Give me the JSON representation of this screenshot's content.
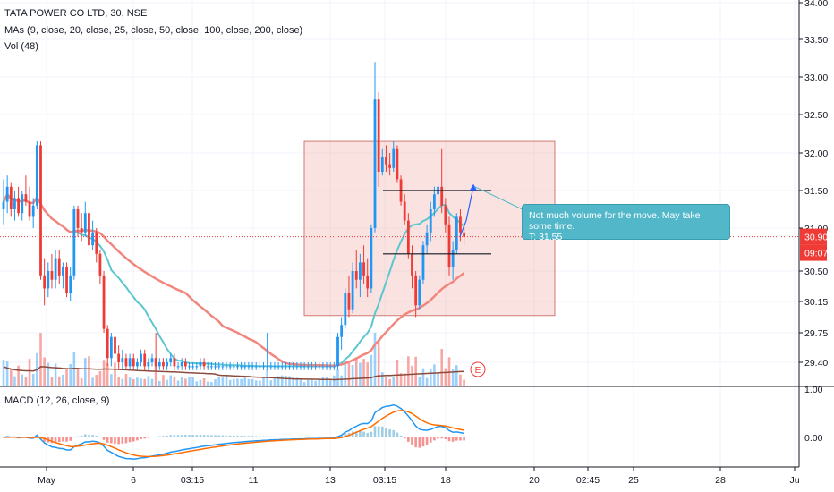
{
  "legend": {
    "symbol": "TATA POWER CO LTD, 30, NSE",
    "mas": "MAs (9, close, 20, close, 25, close, 50, close, 100, close, 200, close)",
    "vol": "Vol (48)",
    "macd": "MACD (12, 26, close, 9)"
  },
  "callout": {
    "line1": "Not much volume for the move. May take some time.",
    "line2": "T: 31.55"
  },
  "earnings_marker": "E",
  "price_badge": "30.90",
  "time_badge": "09:07",
  "colors": {
    "up": "#2196f3",
    "down": "#ef3b36",
    "ma_fast": "#5cc6d0",
    "ma_slow": "#f1867e",
    "ma_long": "#8b4a3a",
    "macd_line": "#2196f3",
    "signal_line": "#ff6d00",
    "price_line": "#ef3b36",
    "callout_bg": "#51b7c9"
  },
  "chart_data": {
    "type": "candlestick",
    "title": "TATA POWER CO LTD, 30, NSE",
    "price_axis": {
      "ticks": [
        "34.00",
        "33.50",
        "33.00",
        "32.50",
        "32.00",
        "31.50",
        "31.00",
        "30.50",
        "30.15",
        "29.75",
        "29.40"
      ],
      "ylim": [
        29.2,
        34.0
      ]
    },
    "volume_axis_ticks": [
      "1.00"
    ],
    "macd_axis_ticks": [
      "0.00"
    ],
    "x_ticks": [
      "May",
      "6",
      "03:15",
      "11",
      "13",
      "03:15",
      "18",
      "20",
      "02:45",
      "25",
      "28",
      "Ju"
    ],
    "candles": [
      {
        "o": 31.25,
        "h": 31.65,
        "l": 31.05,
        "c": 31.35
      },
      {
        "o": 31.35,
        "h": 31.7,
        "l": 31.2,
        "c": 31.55
      },
      {
        "o": 31.55,
        "h": 31.6,
        "l": 31.15,
        "c": 31.25
      },
      {
        "o": 31.25,
        "h": 31.5,
        "l": 31.1,
        "c": 31.4
      },
      {
        "o": 31.4,
        "h": 31.55,
        "l": 31.15,
        "c": 31.2
      },
      {
        "o": 31.2,
        "h": 31.5,
        "l": 31.1,
        "c": 31.45
      },
      {
        "o": 31.45,
        "h": 31.7,
        "l": 31.3,
        "c": 31.35
      },
      {
        "o": 31.35,
        "h": 31.55,
        "l": 31.1,
        "c": 31.15
      },
      {
        "o": 31.15,
        "h": 31.4,
        "l": 31.0,
        "c": 31.3
      },
      {
        "o": 31.3,
        "h": 32.15,
        "l": 31.25,
        "c": 32.1
      },
      {
        "o": 32.1,
        "h": 32.15,
        "l": 30.4,
        "c": 30.45
      },
      {
        "o": 30.45,
        "h": 30.65,
        "l": 30.1,
        "c": 30.3
      },
      {
        "o": 30.3,
        "h": 30.6,
        "l": 30.2,
        "c": 30.5
      },
      {
        "o": 30.5,
        "h": 30.7,
        "l": 30.3,
        "c": 30.4
      },
      {
        "o": 30.4,
        "h": 30.75,
        "l": 30.3,
        "c": 30.65
      },
      {
        "o": 30.65,
        "h": 30.75,
        "l": 30.35,
        "c": 30.45
      },
      {
        "o": 30.45,
        "h": 30.6,
        "l": 30.3,
        "c": 30.55
      },
      {
        "o": 30.55,
        "h": 30.6,
        "l": 30.2,
        "c": 30.25
      },
      {
        "o": 30.25,
        "h": 30.55,
        "l": 30.15,
        "c": 30.45
      },
      {
        "o": 30.45,
        "h": 31.3,
        "l": 30.4,
        "c": 31.25
      },
      {
        "o": 31.25,
        "h": 31.3,
        "l": 30.9,
        "c": 31.0
      },
      {
        "o": 31.0,
        "h": 31.2,
        "l": 30.85,
        "c": 30.95
      },
      {
        "o": 30.95,
        "h": 31.35,
        "l": 30.9,
        "c": 31.2
      },
      {
        "o": 31.2,
        "h": 31.25,
        "l": 30.75,
        "c": 30.8
      },
      {
        "o": 30.8,
        "h": 31.1,
        "l": 30.75,
        "c": 30.95
      },
      {
        "o": 30.95,
        "h": 31.0,
        "l": 30.6,
        "c": 30.7
      },
      {
        "o": 30.7,
        "h": 30.75,
        "l": 30.35,
        "c": 30.45
      },
      {
        "o": 30.45,
        "h": 30.5,
        "l": 29.75,
        "c": 29.8
      },
      {
        "o": 29.8,
        "h": 29.85,
        "l": 29.35,
        "c": 29.45
      },
      {
        "o": 29.45,
        "h": 29.75,
        "l": 29.35,
        "c": 29.7
      },
      {
        "o": 29.7,
        "h": 29.8,
        "l": 29.4,
        "c": 29.5
      },
      {
        "o": 29.5,
        "h": 29.6,
        "l": 29.3,
        "c": 29.4
      },
      {
        "o": 29.4,
        "h": 29.55,
        "l": 29.3,
        "c": 29.45
      },
      {
        "o": 29.45,
        "h": 29.5,
        "l": 29.3,
        "c": 29.35
      },
      {
        "o": 29.35,
        "h": 29.5,
        "l": 29.3,
        "c": 29.45
      },
      {
        "o": 29.45,
        "h": 29.5,
        "l": 29.3,
        "c": 29.35
      },
      {
        "o": 29.35,
        "h": 29.45,
        "l": 29.3,
        "c": 29.4
      },
      {
        "o": 29.4,
        "h": 29.55,
        "l": 29.35,
        "c": 29.5
      },
      {
        "o": 29.5,
        "h": 29.55,
        "l": 29.3,
        "c": 29.35
      },
      {
        "o": 29.35,
        "h": 29.45,
        "l": 29.3,
        "c": 29.4
      },
      {
        "o": 29.4,
        "h": 29.5,
        "l": 29.35,
        "c": 29.45
      },
      {
        "o": 29.45,
        "h": 29.75,
        "l": 29.3,
        "c": 29.35
      },
      {
        "o": 29.35,
        "h": 29.45,
        "l": 29.3,
        "c": 29.4
      },
      {
        "o": 29.4,
        "h": 29.45,
        "l": 29.3,
        "c": 29.35
      },
      {
        "o": 29.35,
        "h": 29.45,
        "l": 29.3,
        "c": 29.4
      },
      {
        "o": 29.4,
        "h": 29.5,
        "l": 29.35,
        "c": 29.45
      },
      {
        "o": 29.45,
        "h": 29.5,
        "l": 29.3,
        "c": 29.35
      },
      {
        "o": 29.35,
        "h": 29.4,
        "l": 29.3,
        "c": 29.35
      },
      {
        "o": 29.35,
        "h": 29.45,
        "l": 29.3,
        "c": 29.4
      },
      {
        "o": 29.4,
        "h": 29.45,
        "l": 29.3,
        "c": 29.35
      },
      {
        "o": 29.35,
        "h": 29.4,
        "l": 29.3,
        "c": 29.35
      },
      {
        "o": 29.35,
        "h": 29.4,
        "l": 29.3,
        "c": 29.35
      },
      {
        "o": 29.35,
        "h": 29.4,
        "l": 29.3,
        "c": 29.35
      },
      {
        "o": 29.35,
        "h": 29.45,
        "l": 29.3,
        "c": 29.4
      },
      {
        "o": 29.4,
        "h": 29.45,
        "l": 29.3,
        "c": 29.35
      },
      {
        "o": 29.35,
        "h": 29.4,
        "l": 29.3,
        "c": 29.35
      },
      {
        "o": 29.35,
        "h": 29.4,
        "l": 29.3,
        "c": 29.35
      },
      {
        "o": 29.35,
        "h": 29.4,
        "l": 29.3,
        "c": 29.35
      },
      {
        "o": 29.35,
        "h": 29.4,
        "l": 29.3,
        "c": 29.35
      },
      {
        "o": 29.35,
        "h": 29.4,
        "l": 29.3,
        "c": 29.35
      },
      {
        "o": 29.35,
        "h": 29.4,
        "l": 29.3,
        "c": 29.35
      },
      {
        "o": 29.35,
        "h": 29.4,
        "l": 29.3,
        "c": 29.35
      },
      {
        "o": 29.35,
        "h": 29.4,
        "l": 29.3,
        "c": 29.35
      },
      {
        "o": 29.35,
        "h": 29.4,
        "l": 29.3,
        "c": 29.35
      },
      {
        "o": 29.35,
        "h": 29.4,
        "l": 29.3,
        "c": 29.35
      },
      {
        "o": 29.35,
        "h": 29.4,
        "l": 29.3,
        "c": 29.35
      },
      {
        "o": 29.35,
        "h": 29.4,
        "l": 29.3,
        "c": 29.35
      },
      {
        "o": 29.35,
        "h": 29.4,
        "l": 29.3,
        "c": 29.35
      },
      {
        "o": 29.35,
        "h": 29.4,
        "l": 29.3,
        "c": 29.35
      },
      {
        "o": 29.35,
        "h": 29.4,
        "l": 29.3,
        "c": 29.35
      },
      {
        "o": 29.35,
        "h": 29.4,
        "l": 29.3,
        "c": 29.35
      },
      {
        "o": 29.35,
        "h": 29.75,
        "l": 29.3,
        "c": 29.35
      },
      {
        "o": 29.35,
        "h": 29.4,
        "l": 29.3,
        "c": 29.35
      },
      {
        "o": 29.35,
        "h": 29.4,
        "l": 29.3,
        "c": 29.35
      },
      {
        "o": 29.35,
        "h": 29.4,
        "l": 29.3,
        "c": 29.35
      },
      {
        "o": 29.35,
        "h": 29.4,
        "l": 29.3,
        "c": 29.35
      },
      {
        "o": 29.35,
        "h": 29.4,
        "l": 29.3,
        "c": 29.35
      },
      {
        "o": 29.35,
        "h": 29.4,
        "l": 29.3,
        "c": 29.35
      },
      {
        "o": 29.35,
        "h": 29.4,
        "l": 29.3,
        "c": 29.35
      },
      {
        "o": 29.35,
        "h": 29.4,
        "l": 29.3,
        "c": 29.35
      },
      {
        "o": 29.35,
        "h": 29.4,
        "l": 29.3,
        "c": 29.35
      },
      {
        "o": 29.35,
        "h": 29.4,
        "l": 29.3,
        "c": 29.35
      },
      {
        "o": 29.35,
        "h": 29.4,
        "l": 29.3,
        "c": 29.35
      },
      {
        "o": 29.35,
        "h": 29.4,
        "l": 29.3,
        "c": 29.35
      },
      {
        "o": 29.35,
        "h": 29.4,
        "l": 29.3,
        "c": 29.35
      },
      {
        "o": 29.35,
        "h": 29.4,
        "l": 29.3,
        "c": 29.35
      },
      {
        "o": 29.35,
        "h": 29.4,
        "l": 29.3,
        "c": 29.35
      },
      {
        "o": 29.35,
        "h": 29.4,
        "l": 29.3,
        "c": 29.35
      },
      {
        "o": 29.35,
        "h": 29.4,
        "l": 29.3,
        "c": 29.35
      },
      {
        "o": 29.35,
        "h": 29.4,
        "l": 29.3,
        "c": 29.35
      },
      {
        "o": 29.35,
        "h": 29.75,
        "l": 29.3,
        "c": 29.7
      },
      {
        "o": 29.7,
        "h": 29.95,
        "l": 29.55,
        "c": 29.85
      },
      {
        "o": 29.85,
        "h": 30.3,
        "l": 29.8,
        "c": 30.25
      },
      {
        "o": 30.25,
        "h": 30.45,
        "l": 29.95,
        "c": 30.05
      },
      {
        "o": 30.05,
        "h": 30.6,
        "l": 30.0,
        "c": 30.5
      },
      {
        "o": 30.5,
        "h": 30.75,
        "l": 30.3,
        "c": 30.4
      },
      {
        "o": 30.4,
        "h": 30.7,
        "l": 30.2,
        "c": 30.6
      },
      {
        "o": 30.6,
        "h": 30.8,
        "l": 30.35,
        "c": 30.45
      },
      {
        "o": 30.45,
        "h": 30.65,
        "l": 30.2,
        "c": 30.3
      },
      {
        "o": 30.3,
        "h": 31.05,
        "l": 30.25,
        "c": 31.0
      },
      {
        "o": 31.0,
        "h": 33.2,
        "l": 30.95,
        "c": 32.7
      },
      {
        "o": 32.7,
        "h": 32.8,
        "l": 31.55,
        "c": 31.75
      },
      {
        "o": 31.75,
        "h": 32.05,
        "l": 31.7,
        "c": 31.95
      },
      {
        "o": 31.95,
        "h": 32.1,
        "l": 31.75,
        "c": 31.85
      },
      {
        "o": 31.85,
        "h": 32.0,
        "l": 31.7,
        "c": 31.8
      },
      {
        "o": 31.8,
        "h": 32.15,
        "l": 31.75,
        "c": 32.05
      },
      {
        "o": 32.05,
        "h": 32.1,
        "l": 31.6,
        "c": 31.65
      },
      {
        "o": 31.65,
        "h": 31.7,
        "l": 31.3,
        "c": 31.35
      },
      {
        "o": 31.35,
        "h": 31.45,
        "l": 31.05,
        "c": 31.1
      },
      {
        "o": 31.1,
        "h": 31.2,
        "l": 30.65,
        "c": 30.7
      },
      {
        "o": 30.7,
        "h": 30.8,
        "l": 30.3,
        "c": 30.45
      },
      {
        "o": 30.45,
        "h": 30.5,
        "l": 29.95,
        "c": 30.1
      },
      {
        "o": 30.1,
        "h": 30.45,
        "l": 30.05,
        "c": 30.4
      },
      {
        "o": 30.4,
        "h": 30.85,
        "l": 30.35,
        "c": 30.8
      },
      {
        "o": 30.8,
        "h": 31.05,
        "l": 30.7,
        "c": 30.95
      },
      {
        "o": 30.95,
        "h": 31.35,
        "l": 30.85,
        "c": 31.25
      },
      {
        "o": 31.25,
        "h": 31.55,
        "l": 31.15,
        "c": 31.45
      },
      {
        "o": 31.45,
        "h": 31.6,
        "l": 31.3,
        "c": 31.55
      },
      {
        "o": 31.55,
        "h": 32.05,
        "l": 31.2,
        "c": 31.3
      },
      {
        "o": 31.3,
        "h": 31.4,
        "l": 30.95,
        "c": 31.05
      },
      {
        "o": 31.05,
        "h": 31.15,
        "l": 30.45,
        "c": 30.55
      },
      {
        "o": 30.55,
        "h": 30.85,
        "l": 30.4,
        "c": 30.75
      },
      {
        "o": 30.75,
        "h": 31.2,
        "l": 30.7,
        "c": 31.15
      },
      {
        "o": 31.15,
        "h": 31.25,
        "l": 30.85,
        "c": 30.95
      },
      {
        "o": 30.95,
        "h": 31.05,
        "l": 30.8,
        "c": 30.9
      }
    ],
    "annotations": {
      "box": {
        "price_top": 32.15,
        "price_bottom": 29.97
      },
      "resistance": 31.5,
      "support": 30.7,
      "current_price": 30.9,
      "target": 31.55
    }
  }
}
